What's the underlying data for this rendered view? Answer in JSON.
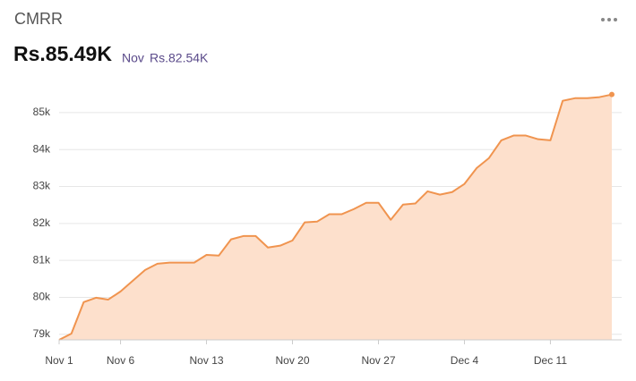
{
  "header": {
    "title": "CMRR",
    "value": "Rs.85.49K",
    "compare_label": "Nov",
    "compare_value": "Rs.82.54K"
  },
  "chart_data": {
    "type": "area",
    "categories": [
      "Nov 1",
      null,
      null,
      null,
      null,
      "Nov 6",
      null,
      null,
      null,
      null,
      null,
      null,
      "Nov 13",
      null,
      null,
      null,
      null,
      null,
      null,
      "Nov 20",
      null,
      null,
      null,
      null,
      null,
      null,
      "Nov 27",
      null,
      null,
      null,
      null,
      null,
      null,
      "Dec 4",
      null,
      null,
      null,
      null,
      null,
      null,
      "Dec 11",
      null,
      null,
      null,
      null,
      null
    ],
    "values": [
      78850,
      79020,
      79870,
      79990,
      79940,
      80160,
      80450,
      80740,
      80910,
      80940,
      80940,
      80940,
      81150,
      81130,
      81570,
      81660,
      81660,
      81350,
      81400,
      81540,
      82030,
      82050,
      82250,
      82250,
      82390,
      82560,
      82560,
      82100,
      82510,
      82540,
      82870,
      82780,
      82850,
      83070,
      83500,
      83770,
      84250,
      84380,
      84380,
      84280,
      84250,
      85320,
      85390,
      85390,
      85420,
      85490
    ],
    "color": "#f0944f",
    "fill_color": "#fde0cc",
    "ylim": [
      78850,
      85700
    ],
    "yticks": [
      {
        "value": 79000,
        "label": "79k"
      },
      {
        "value": 80000,
        "label": "80k"
      },
      {
        "value": 81000,
        "label": "81k"
      },
      {
        "value": 82000,
        "label": "82k"
      },
      {
        "value": 83000,
        "label": "83k"
      },
      {
        "value": 84000,
        "label": "84k"
      },
      {
        "value": 85000,
        "label": "85k"
      }
    ],
    "grid": true
  }
}
